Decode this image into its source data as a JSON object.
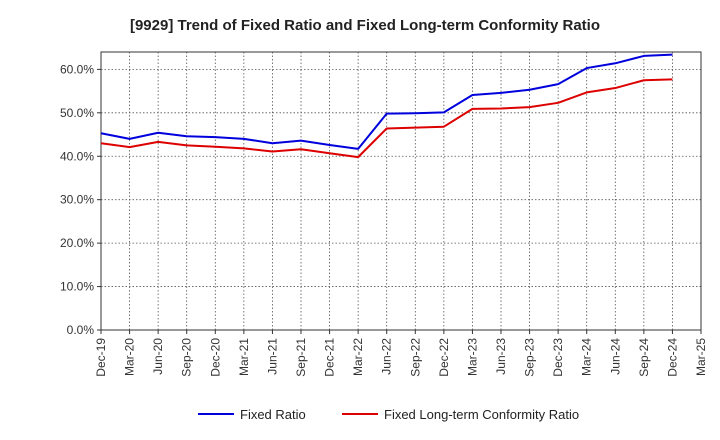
{
  "chart_data": {
    "type": "line",
    "title": "[9929]  Trend of Fixed Ratio and Fixed Long-term Conformity Ratio",
    "xlabel": "",
    "ylabel": "",
    "x_ticks": [
      "Dec-19",
      "Mar-20",
      "Jun-20",
      "Sep-20",
      "Dec-20",
      "Mar-21",
      "Jun-21",
      "Sep-21",
      "Dec-21",
      "Mar-22",
      "Jun-22",
      "Sep-22",
      "Dec-22",
      "Mar-23",
      "Jun-23",
      "Sep-23",
      "Dec-23",
      "Mar-24",
      "Jun-24",
      "Sep-24",
      "Dec-24",
      "Mar-25"
    ],
    "y_ticks": [
      "0.0%",
      "10.0%",
      "20.0%",
      "30.0%",
      "40.0%",
      "50.0%",
      "60.0%"
    ],
    "ylim": [
      0,
      64
    ],
    "grid": true,
    "legend_position": "bottom",
    "categories": [
      "Dec-19",
      "Mar-20",
      "Jun-20",
      "Sep-20",
      "Dec-20",
      "Mar-21",
      "Jun-21",
      "Sep-21",
      "Dec-21",
      "Mar-22",
      "Jun-22",
      "Sep-22",
      "Dec-22",
      "Mar-23",
      "Jun-23",
      "Sep-23",
      "Dec-23",
      "Mar-24",
      "Jun-24",
      "Sep-24",
      "Dec-24"
    ],
    "series": [
      {
        "name": "Fixed Ratio",
        "color": "#0000dd",
        "values": [
          45.3,
          44.0,
          45.4,
          44.6,
          44.4,
          44.0,
          43.0,
          43.6,
          42.6,
          41.7,
          49.8,
          49.9,
          50.1,
          54.1,
          54.6,
          55.3,
          56.6,
          60.3,
          61.4,
          63.1,
          63.4
        ]
      },
      {
        "name": "Fixed Long-term Conformity Ratio",
        "color": "#dd0000",
        "values": [
          43.0,
          42.1,
          43.3,
          42.5,
          42.2,
          41.8,
          41.1,
          41.6,
          40.7,
          39.8,
          46.4,
          46.6,
          46.8,
          50.9,
          51.0,
          51.3,
          52.3,
          54.7,
          55.7,
          57.5,
          57.7
        ]
      }
    ]
  }
}
